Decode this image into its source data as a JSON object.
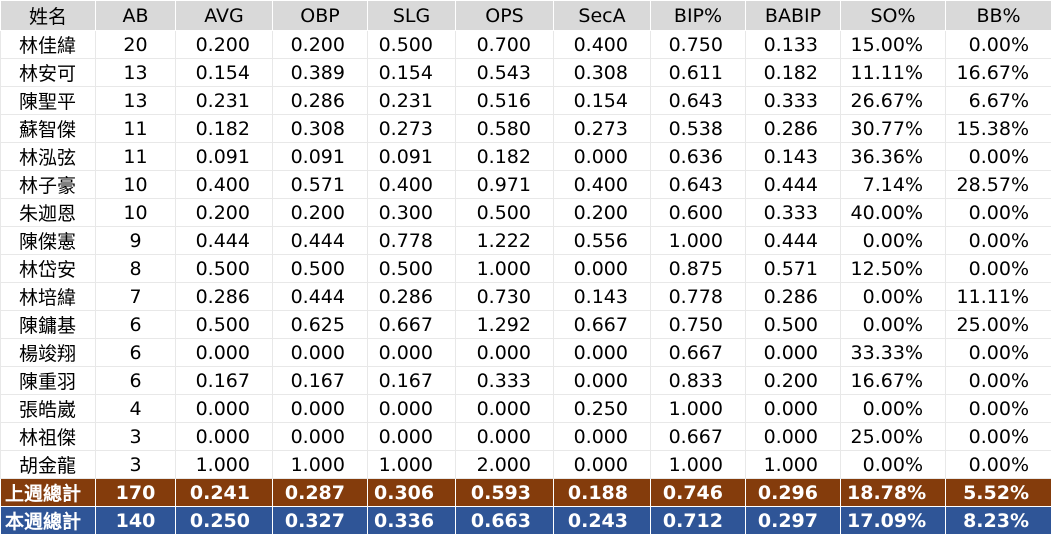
{
  "table": {
    "columns": [
      "姓名",
      "AB",
      "AVG",
      "OBP",
      "SLG",
      "OPS",
      "SecA",
      "BIP%",
      "BABIP",
      "SO%",
      "BB%"
    ],
    "rows": [
      [
        "林佳緯",
        "20",
        "0.200",
        "0.200",
        "0.500",
        "0.700",
        "0.400",
        "0.750",
        "0.133",
        "15.00%",
        "0.00%"
      ],
      [
        "林安可",
        "13",
        "0.154",
        "0.389",
        "0.154",
        "0.543",
        "0.308",
        "0.611",
        "0.182",
        "11.11%",
        "16.67%"
      ],
      [
        "陳聖平",
        "13",
        "0.231",
        "0.286",
        "0.231",
        "0.516",
        "0.154",
        "0.643",
        "0.333",
        "26.67%",
        "6.67%"
      ],
      [
        "蘇智傑",
        "11",
        "0.182",
        "0.308",
        "0.273",
        "0.580",
        "0.273",
        "0.538",
        "0.286",
        "30.77%",
        "15.38%"
      ],
      [
        "林泓弦",
        "11",
        "0.091",
        "0.091",
        "0.091",
        "0.182",
        "0.000",
        "0.636",
        "0.143",
        "36.36%",
        "0.00%"
      ],
      [
        "林子豪",
        "10",
        "0.400",
        "0.571",
        "0.400",
        "0.971",
        "0.400",
        "0.643",
        "0.444",
        "7.14%",
        "28.57%"
      ],
      [
        "朱迦恩",
        "10",
        "0.200",
        "0.200",
        "0.300",
        "0.500",
        "0.200",
        "0.600",
        "0.333",
        "40.00%",
        "0.00%"
      ],
      [
        "陳傑憲",
        "9",
        "0.444",
        "0.444",
        "0.778",
        "1.222",
        "0.556",
        "1.000",
        "0.444",
        "0.00%",
        "0.00%"
      ],
      [
        "林岱安",
        "8",
        "0.500",
        "0.500",
        "0.500",
        "1.000",
        "0.000",
        "0.875",
        "0.571",
        "12.50%",
        "0.00%"
      ],
      [
        "林培緯",
        "7",
        "0.286",
        "0.444",
        "0.286",
        "0.730",
        "0.143",
        "0.778",
        "0.286",
        "0.00%",
        "11.11%"
      ],
      [
        "陳鏞基",
        "6",
        "0.500",
        "0.625",
        "0.667",
        "1.292",
        "0.667",
        "0.750",
        "0.500",
        "0.00%",
        "25.00%"
      ],
      [
        "楊竣翔",
        "6",
        "0.000",
        "0.000",
        "0.000",
        "0.000",
        "0.000",
        "0.667",
        "0.000",
        "33.33%",
        "0.00%"
      ],
      [
        "陳重羽",
        "6",
        "0.167",
        "0.167",
        "0.167",
        "0.333",
        "0.000",
        "0.833",
        "0.200",
        "16.67%",
        "0.00%"
      ],
      [
        "張皓崴",
        "4",
        "0.000",
        "0.000",
        "0.000",
        "0.000",
        "0.250",
        "1.000",
        "0.000",
        "0.00%",
        "0.00%"
      ],
      [
        "林祖傑",
        "3",
        "0.000",
        "0.000",
        "0.000",
        "0.000",
        "0.000",
        "0.667",
        "0.000",
        "25.00%",
        "0.00%"
      ],
      [
        "胡金龍",
        "3",
        "1.000",
        "1.000",
        "1.000",
        "2.000",
        "0.000",
        "1.000",
        "1.000",
        "0.00%",
        "0.00%"
      ]
    ],
    "totals": [
      [
        "上週總計",
        "170",
        "0.241",
        "0.287",
        "0.306",
        "0.593",
        "0.188",
        "0.746",
        "0.296",
        "18.78%",
        "5.52%"
      ],
      [
        "本週總計",
        "140",
        "0.250",
        "0.327",
        "0.336",
        "0.663",
        "0.243",
        "0.712",
        "0.297",
        "17.09%",
        "8.23%"
      ]
    ]
  }
}
